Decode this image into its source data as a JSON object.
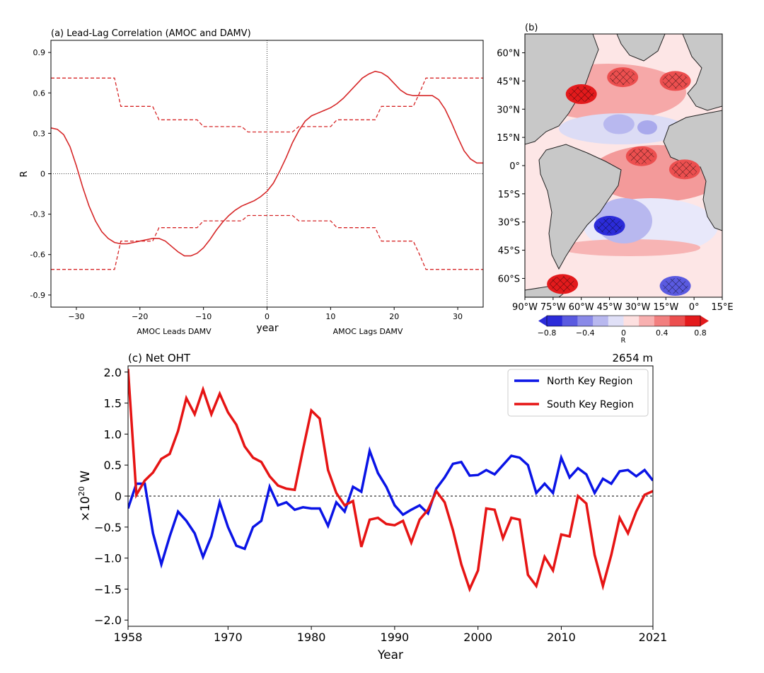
{
  "chart_data": [
    {
      "type": "line",
      "panel": "a",
      "title": "(a) Lead-Lag Correlation (AMOC and DAMV)",
      "xlabel": "year",
      "ylabel": "R",
      "xlim": [
        -34,
        34
      ],
      "ylim": [
        -0.99,
        0.99
      ],
      "xticks": [
        -30,
        -20,
        -10,
        0,
        10,
        20,
        30
      ],
      "yticks": [
        0.9,
        0.6,
        0.3,
        0,
        -0.3,
        -0.6,
        -0.9
      ],
      "annotations": [
        "AMOC Leads DAMV",
        "AMOC Lags DAMV"
      ],
      "grid": false,
      "series": [
        {
          "role": "correlation",
          "color": "#d62728",
          "x": [
            -34,
            -33,
            -32,
            -31,
            -30,
            -29,
            -28,
            -27,
            -26,
            -25,
            -24,
            -23,
            -22,
            -21,
            -20,
            -19,
            -18,
            -17,
            -16,
            -15,
            -14,
            -13,
            -12,
            -11,
            -10,
            -9,
            -8,
            -7,
            -6,
            -5,
            -4,
            -3,
            -2,
            -1,
            0,
            1,
            2,
            3,
            4,
            5,
            6,
            7,
            8,
            9,
            10,
            11,
            12,
            13,
            14,
            15,
            16,
            17,
            18,
            19,
            20,
            21,
            22,
            23,
            24,
            25,
            26,
            27,
            28,
            29,
            30,
            31,
            32,
            33,
            34
          ],
          "y": [
            0.34,
            0.33,
            0.29,
            0.2,
            0.06,
            -0.1,
            -0.24,
            -0.35,
            -0.43,
            -0.48,
            -0.51,
            -0.52,
            -0.52,
            -0.51,
            -0.5,
            -0.49,
            -0.48,
            -0.48,
            -0.5,
            -0.54,
            -0.58,
            -0.61,
            -0.61,
            -0.59,
            -0.55,
            -0.49,
            -0.42,
            -0.36,
            -0.31,
            -0.27,
            -0.24,
            -0.22,
            -0.2,
            -0.17,
            -0.13,
            -0.07,
            0.02,
            0.12,
            0.23,
            0.32,
            0.39,
            0.43,
            0.45,
            0.47,
            0.49,
            0.52,
            0.56,
            0.61,
            0.66,
            0.71,
            0.74,
            0.76,
            0.75,
            0.72,
            0.67,
            0.62,
            0.59,
            0.58,
            0.58,
            0.58,
            0.58,
            0.55,
            0.48,
            0.38,
            0.27,
            0.17,
            0.11,
            0.08,
            0.08
          ]
        },
        {
          "role": "upper-significance",
          "color": "#d62728",
          "dashed": true,
          "x": [
            -34,
            -24,
            -23,
            -18,
            -17,
            -11,
            -10,
            -4,
            -3,
            4,
            5,
            10,
            11,
            17,
            18,
            22,
            23,
            24,
            25,
            34
          ],
          "y": [
            0.71,
            0.71,
            0.5,
            0.5,
            0.4,
            0.4,
            0.35,
            0.35,
            0.31,
            0.31,
            0.35,
            0.35,
            0.4,
            0.4,
            0.5,
            0.5,
            0.5,
            0.6,
            0.71,
            0.71
          ]
        },
        {
          "role": "lower-significance",
          "color": "#d62728",
          "dashed": true,
          "x": [
            -34,
            -24,
            -23,
            -18,
            -17,
            -11,
            -10,
            -4,
            -3,
            4,
            5,
            10,
            11,
            17,
            18,
            22,
            23,
            24,
            25,
            34
          ],
          "y": [
            -0.71,
            -0.71,
            -0.5,
            -0.5,
            -0.4,
            -0.4,
            -0.35,
            -0.35,
            -0.31,
            -0.31,
            -0.35,
            -0.35,
            -0.4,
            -0.4,
            -0.5,
            -0.5,
            -0.5,
            -0.6,
            -0.71,
            -0.71
          ]
        }
      ]
    },
    {
      "type": "heatmap",
      "panel": "b",
      "title": "(b)",
      "lat_ticks": [
        "60°N",
        "45°N",
        "30°N",
        "15°N",
        "0°",
        "15°S",
        "30°S",
        "45°S",
        "60°S"
      ],
      "lon_ticks": [
        "90°W",
        "75°W",
        "60°W",
        "45°W",
        "30°W",
        "15°W",
        "0°",
        "15°E"
      ],
      "lat_range": [
        -70,
        70
      ],
      "lon_range": [
        -90,
        15
      ],
      "colorbar": {
        "label": "R",
        "ticks": [
          "-0.8",
          "-0.4",
          "0",
          "0.4",
          "0.8"
        ],
        "range": [
          -0.8,
          0.8
        ],
        "colors": [
          "#2b2bd9",
          "#5a5ae0",
          "#8a8ae8",
          "#b8b8ef",
          "#e0e0f7",
          "#fde0e0",
          "#f8b0b0",
          "#f27f7f",
          "#ec4f4f",
          "#e31a1c"
        ]
      },
      "regions": [
        {
          "name": "north-atlantic-positive",
          "value": 0.55,
          "hatched": true,
          "lat": 47,
          "lon": -38
        },
        {
          "name": "labrador-positive",
          "value": 0.7,
          "hatched": true,
          "lat": 38,
          "lon": -60
        },
        {
          "name": "north-east-positive",
          "value": 0.6,
          "hatched": true,
          "lat": 45,
          "lon": -10
        },
        {
          "name": "subtropical-negative",
          "value": -0.3,
          "hatched": false,
          "lat": 22,
          "lon": -40
        },
        {
          "name": "tropical-positive",
          "value": 0.5,
          "hatched": true,
          "lat": 5,
          "lon": -28
        },
        {
          "name": "gulf-of-guinea-positive",
          "value": 0.6,
          "hatched": true,
          "lat": -2,
          "lon": -5
        },
        {
          "name": "south-west-negative",
          "value": -0.7,
          "hatched": true,
          "lat": -32,
          "lon": -45
        },
        {
          "name": "southern-ocean-positive",
          "value": 0.7,
          "hatched": true,
          "lat": -63,
          "lon": -70
        },
        {
          "name": "south-east-negative",
          "value": -0.6,
          "hatched": true,
          "lat": -64,
          "lon": -10
        }
      ]
    },
    {
      "type": "line",
      "panel": "c",
      "title": "(c) Net OHT",
      "subtitle": "2654 m",
      "xlabel": "Year",
      "ylabel_prefix": "×10",
      "ylabel_exponent": "20",
      "ylabel_unit": " W",
      "xlim": [
        1958,
        2021
      ],
      "ylim": [
        -2.1,
        2.1
      ],
      "xticks": [
        1958,
        1970,
        1980,
        1990,
        2000,
        2010,
        2021
      ],
      "yticks": [
        "2.0",
        "1.5",
        "1.0",
        "0.5",
        "0",
        "-0.5",
        "-1.0",
        "-1.5",
        "-2.0"
      ],
      "ytick_values": [
        2.0,
        1.5,
        1.0,
        0.5,
        0,
        -0.5,
        -1.0,
        -1.5,
        -2.0
      ],
      "legend_position": "top-right",
      "grid": false,
      "series": [
        {
          "name": "North Key Region",
          "color": "#0a14e6",
          "x": [
            1958,
            1959,
            1960,
            1961,
            1962,
            1963,
            1964,
            1965,
            1966,
            1967,
            1968,
            1969,
            1970,
            1971,
            1972,
            1973,
            1974,
            1975,
            1976,
            1977,
            1978,
            1979,
            1980,
            1981,
            1982,
            1983,
            1984,
            1985,
            1986,
            1987,
            1988,
            1989,
            1990,
            1991,
            1992,
            1993,
            1994,
            1995,
            1996,
            1997,
            1998,
            1999,
            2000,
            2001,
            2002,
            2003,
            2004,
            2005,
            2006,
            2007,
            2008,
            2009,
            2010,
            2011,
            2012,
            2013,
            2014,
            2015,
            2016,
            2017,
            2018,
            2019,
            2020,
            2021
          ],
          "values": [
            -0.2,
            0.2,
            0.2,
            -0.6,
            -1.1,
            -0.65,
            -0.25,
            -0.4,
            -0.6,
            -0.98,
            -0.65,
            -0.1,
            -0.5,
            -0.8,
            -0.85,
            -0.5,
            -0.4,
            0.15,
            -0.15,
            -0.1,
            -0.22,
            -0.18,
            -0.2,
            -0.2,
            -0.48,
            -0.1,
            -0.25,
            0.15,
            0.07,
            0.73,
            0.37,
            0.15,
            -0.15,
            -0.3,
            -0.22,
            -0.15,
            -0.28,
            0.12,
            0.3,
            0.52,
            0.55,
            0.33,
            0.34,
            0.42,
            0.35,
            0.5,
            0.65,
            0.62,
            0.5,
            0.05,
            0.2,
            0.05,
            0.62,
            0.3,
            0.45,
            0.35,
            0.05,
            0.28,
            0.2,
            0.4,
            0.42,
            0.32,
            0.42,
            0.25
          ]
        },
        {
          "name": "South Key Region",
          "color": "#e61414",
          "x": [
            1958,
            1959,
            1960,
            1961,
            1962,
            1963,
            1964,
            1965,
            1966,
            1967,
            1968,
            1969,
            1970,
            1971,
            1972,
            1973,
            1974,
            1975,
            1976,
            1977,
            1978,
            1979,
            1980,
            1981,
            1982,
            1983,
            1984,
            1985,
            1986,
            1987,
            1988,
            1989,
            1990,
            1991,
            1992,
            1993,
            1994,
            1995,
            1996,
            1997,
            1998,
            1999,
            2000,
            2001,
            2002,
            2003,
            2004,
            2005,
            2006,
            2007,
            2008,
            2009,
            2010,
            2011,
            2012,
            2013,
            2014,
            2015,
            2016,
            2017,
            2018,
            2019,
            2020,
            2021
          ],
          "values": [
            2.05,
            0.02,
            0.25,
            0.38,
            0.6,
            0.68,
            1.05,
            1.58,
            1.32,
            1.72,
            1.32,
            1.65,
            1.35,
            1.15,
            0.8,
            0.62,
            0.55,
            0.32,
            0.17,
            0.12,
            0.1,
            0.75,
            1.38,
            1.25,
            0.42,
            0.05,
            -0.15,
            -0.08,
            -0.82,
            -0.38,
            -0.35,
            -0.45,
            -0.47,
            -0.4,
            -0.75,
            -0.38,
            -0.22,
            0.08,
            -0.1,
            -0.55,
            -1.1,
            -1.5,
            -1.2,
            -0.2,
            -0.22,
            -0.68,
            -0.35,
            -0.38,
            -1.27,
            -1.45,
            -0.98,
            -1.2,
            -0.62,
            -0.65,
            0.0,
            -0.12,
            -0.95,
            -1.45,
            -0.95,
            -0.35,
            -0.6,
            -0.25,
            0.02,
            0.08
          ]
        }
      ]
    }
  ]
}
